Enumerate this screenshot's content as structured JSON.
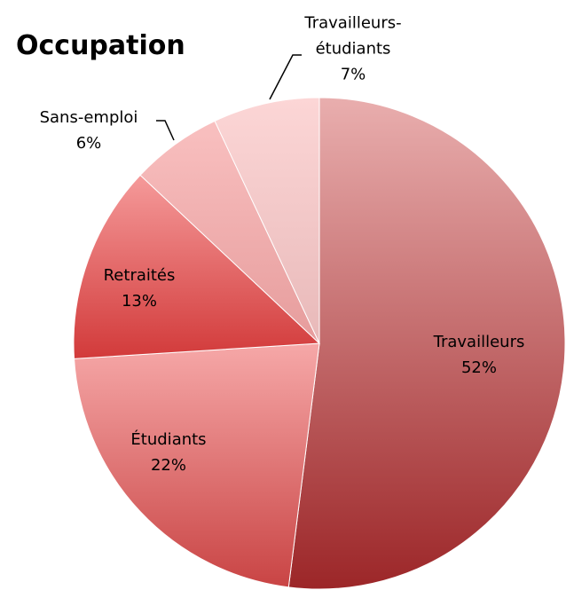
{
  "chart_data": {
    "type": "pie",
    "title": "Occupation",
    "categories": [
      "Travailleurs",
      "Étudiants",
      "Retraités",
      "Sans-emploi",
      "Travailleurs-étudiants"
    ],
    "values": [
      52,
      22,
      13,
      6,
      7
    ],
    "value_labels": [
      "52%",
      "22%",
      "13%",
      "6%",
      "7%"
    ],
    "colors": [
      [
        "#e9aeae",
        "#9c2628"
      ],
      [
        "#f6a8a8",
        "#c94444"
      ],
      [
        "#f59a9a",
        "#d23a3a"
      ],
      [
        "#f9c0c0",
        "#e69c9c"
      ],
      [
        "#fcd6d6",
        "#e8b9b9"
      ]
    ]
  }
}
